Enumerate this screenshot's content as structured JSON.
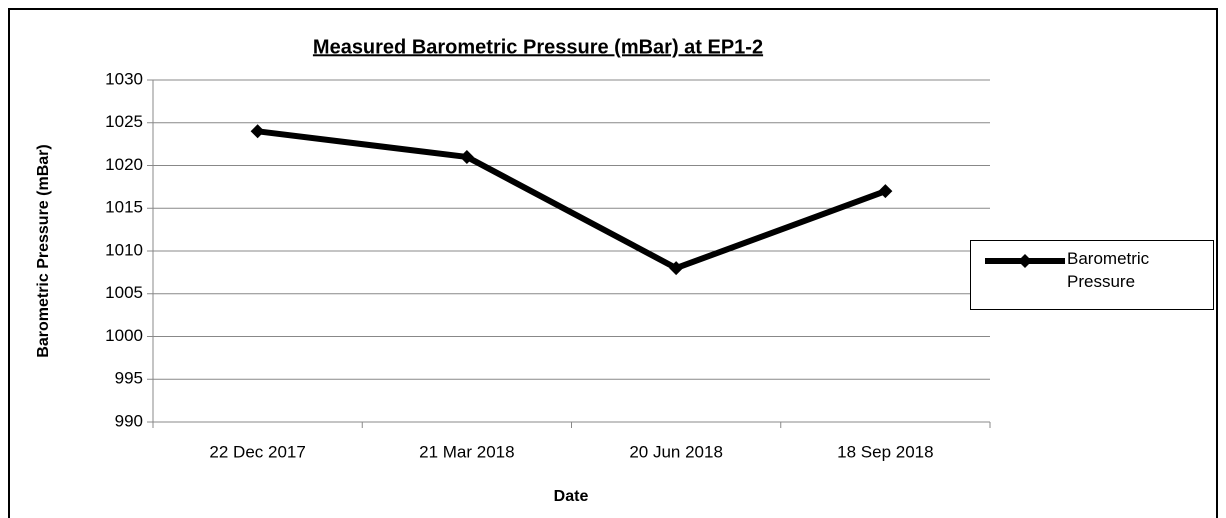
{
  "chart_data": {
    "type": "line",
    "title": "Measured Barometric Pressure (mBar) at EP1-2",
    "x_label": "Date",
    "y_label": "Barometric Pressure (mBar)",
    "categories": [
      "22 Dec 2017",
      "21 Mar 2018",
      "20 Jun 2018",
      "18 Sep 2018"
    ],
    "series": [
      {
        "name": "Barometric Pressure",
        "color": "#000000",
        "values": [
          1024,
          1021,
          1008,
          1017
        ]
      }
    ],
    "ylim": [
      990,
      1030
    ],
    "yticks": [
      990,
      995,
      1000,
      1005,
      1010,
      1015,
      1020,
      1025,
      1030
    ],
    "grid": true,
    "legend": "right"
  }
}
